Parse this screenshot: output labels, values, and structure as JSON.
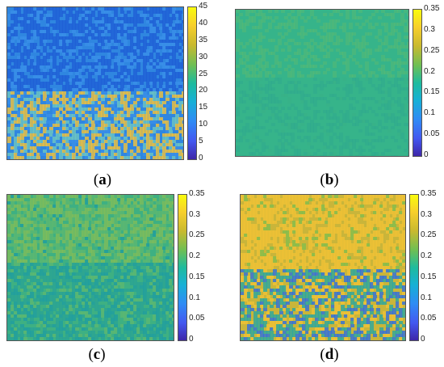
{
  "panels": [
    {
      "id": "a",
      "caption": {
        "open": "(",
        "letter": "a",
        "close": ")"
      },
      "colorbar_ticks": [
        "45",
        "40",
        "35",
        "30",
        "25",
        "20",
        "15",
        "10",
        "5",
        "0"
      ],
      "colorbar_range": [
        0,
        45
      ],
      "base_color": "#2f86e0",
      "band_colors": [
        "#1f5fd6",
        "#3a8fe8",
        "#6ec6c0",
        "#f2c23a"
      ]
    },
    {
      "id": "b",
      "caption": {
        "open": "(",
        "letter": "b",
        "close": ")"
      },
      "colorbar_ticks": [
        "0.35",
        "0.3",
        "0.25",
        "0.2",
        "0.15",
        "0.1",
        "0.05",
        "0"
      ],
      "colorbar_range": [
        0,
        0.35
      ],
      "base_color": "#36b48a",
      "band_colors": [
        "#5dbb6e",
        "#2ea68f",
        "#4ab67c",
        "#3aaf86"
      ]
    },
    {
      "id": "c",
      "caption": {
        "open": "(",
        "letter": "c",
        "close": ")"
      },
      "colorbar_ticks": [
        "0.35",
        "0.3",
        "0.25",
        "0.2",
        "0.15",
        "0.1",
        "0.05",
        "0"
      ],
      "colorbar_range": [
        0,
        0.35
      ],
      "base_color": "#3eb082",
      "band_colors": [
        "#7fbd5a",
        "#2aa494",
        "#5cb870",
        "#1f9ea0"
      ]
    },
    {
      "id": "d",
      "caption": {
        "open": "(",
        "letter": "d",
        "close": ")"
      },
      "colorbar_ticks": [
        "0.35",
        "0.3",
        "0.25",
        "0.2",
        "0.15",
        "0.1",
        "0.05",
        "0"
      ],
      "colorbar_range": [
        0,
        0.35
      ],
      "base_color": "#c9b53a",
      "band_colors": [
        "#f0c236",
        "#2aa7a0",
        "#2f6fe0",
        "#83be4e"
      ]
    }
  ]
}
